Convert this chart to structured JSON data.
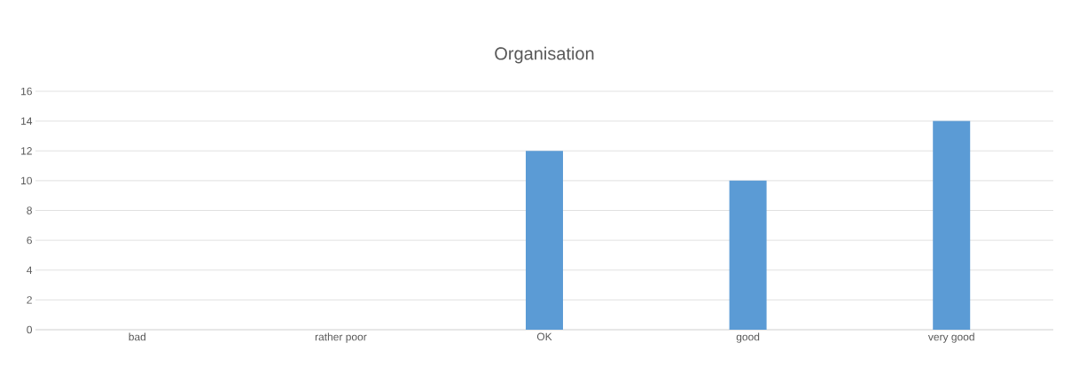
{
  "chart_data": {
    "type": "bar",
    "title": "Organisation",
    "categories": [
      "bad",
      "rather poor",
      "OK",
      "good",
      "very good"
    ],
    "values": [
      0,
      0,
      12,
      10,
      14
    ],
    "color": "#5b9bd5",
    "ylim": [
      0,
      16
    ],
    "yticks": [
      0,
      2,
      4,
      6,
      8,
      10,
      12,
      14,
      16
    ],
    "grid": "y"
  }
}
